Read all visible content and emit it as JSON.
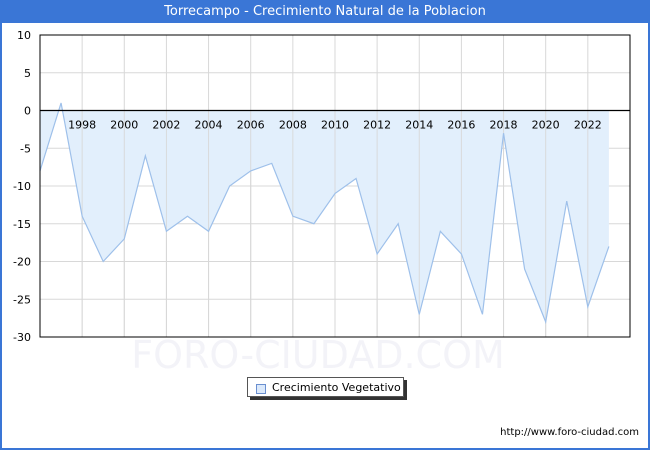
{
  "header": {
    "title": "Torrecampo - Crecimiento Natural de la Poblacion"
  },
  "legend": {
    "label": "Crecimiento Vegetativo"
  },
  "footer": {
    "url": "http://www.foro-ciudad.com"
  },
  "watermark": "FORO-CIUDAD.COM",
  "colors": {
    "header": "#3a76d6",
    "fill": "#e2effc",
    "line": "#9ec0ea",
    "grid": "#d8d8d8"
  },
  "chart_data": {
    "type": "area",
    "title": "Torrecampo - Crecimiento Natural de la Poblacion",
    "xlabel": "",
    "ylabel": "",
    "x": [
      1996,
      1997,
      1998,
      1999,
      2000,
      2001,
      2002,
      2003,
      2004,
      2005,
      2006,
      2007,
      2008,
      2009,
      2010,
      2011,
      2012,
      2013,
      2014,
      2015,
      2016,
      2017,
      2018,
      2019,
      2020,
      2021,
      2022,
      2023
    ],
    "series": [
      {
        "name": "Crecimiento Vegetativo",
        "values": [
          -8,
          1,
          -14,
          -20,
          -17,
          -6,
          -16,
          -14,
          -16,
          -10,
          -8,
          -7,
          -14,
          -15,
          -11,
          -9,
          -19,
          -15,
          -27,
          -16,
          -19,
          -27,
          -3,
          -21,
          -28,
          -12,
          -26,
          -18
        ]
      }
    ],
    "x_tick_labels": [
      "1998",
      "2000",
      "2002",
      "2004",
      "2006",
      "2008",
      "2010",
      "2012",
      "2014",
      "2016",
      "2018",
      "2020",
      "2022"
    ],
    "y_tick_labels": [
      "10",
      "5",
      "0",
      "-5",
      "-10",
      "-15",
      "-20",
      "-25",
      "-30"
    ],
    "ylim": [
      -30,
      10
    ],
    "grid": true,
    "legend_position": "bottom"
  }
}
